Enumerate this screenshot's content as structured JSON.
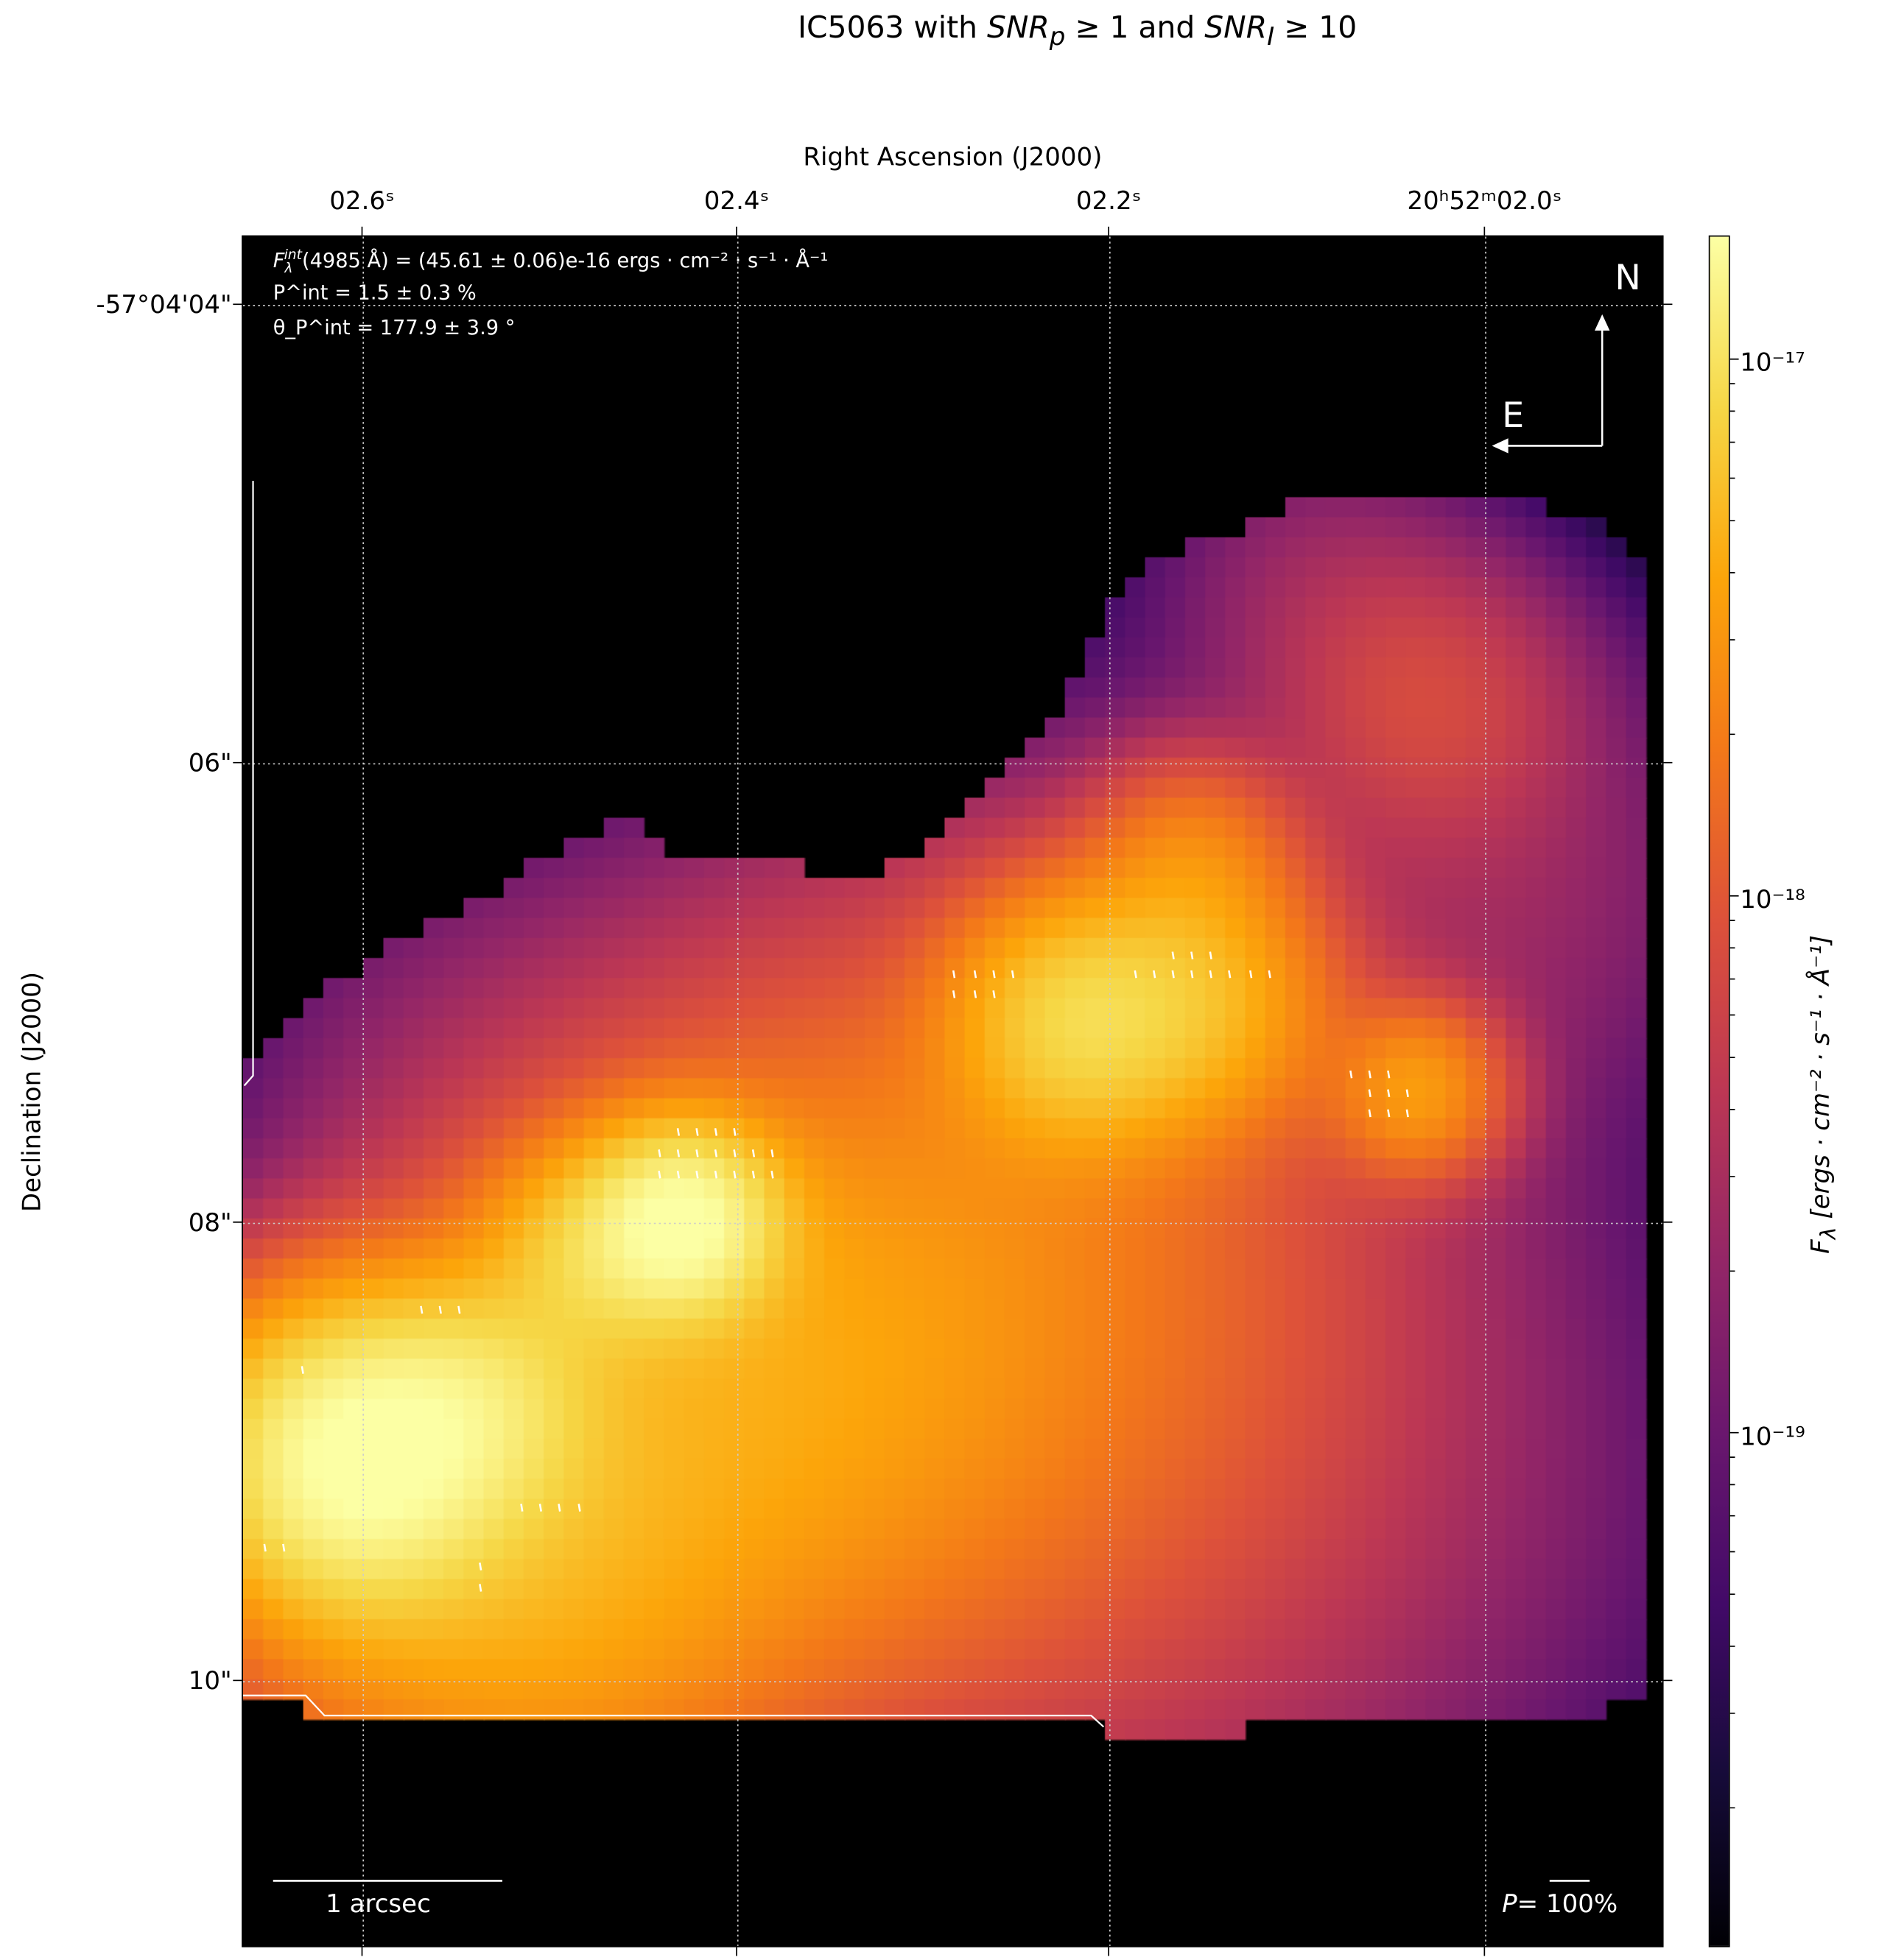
{
  "chart_data": {
    "type": "heatmap",
    "title": {
      "prefix": "IC5063 with ",
      "snr": "SNR",
      "p_sub": "p",
      "mid": "≥ 1 and ",
      "i_sub": "I",
      "suffix": "≥ 10"
    },
    "xlabel": "Right Ascension (J2000)",
    "ylabel": "Declination (J2000)",
    "x_ticks": [
      "02.6ˢ",
      "02.4ˢ",
      "02.2ˢ",
      "20ʰ52ᵐ02.0ˢ"
    ],
    "y_ticks": [
      "-57°04'04\"",
      "06\"",
      "08\"",
      "10\""
    ],
    "grid": true,
    "colormap": "inferno",
    "colorbar": {
      "scale": "log",
      "range": [
        1.1e-20,
        1.7e-17
      ],
      "ticks": [
        "10⁻¹⁷",
        "10⁻¹⁸",
        "10⁻¹⁹"
      ],
      "tick_values": [
        1e-17,
        1e-18,
        1e-19
      ],
      "label_main": "F",
      "label_sub": "λ",
      "label_units": " [ergs · cm⁻² · s⁻¹ · Å⁻¹]"
    },
    "annotations": {
      "flux": "F_λ^int(4985 Å) = (45.61 ± 0.06)e-16 ergs · cm⁻² · s⁻¹ · Å⁻¹",
      "flux_main": "(4985 Å) = (45.61 ± 0.06)e-16 ergs · cm⁻² · s⁻¹ · Å⁻¹",
      "pol": "P^int = 1.5 ± 0.3 %",
      "pol_main": " = 1.5 ± 0.3 %",
      "angle": "θ_P^int = 177.9 ± 3.9 °",
      "angle_main": " = 177.9 ± 3.9 °",
      "sup": "int"
    },
    "compass": {
      "north": "N",
      "east": "E"
    },
    "scale_bar": "1 arcsec",
    "pol_scale": {
      "prefix": "P",
      "value": "= 100%"
    }
  }
}
